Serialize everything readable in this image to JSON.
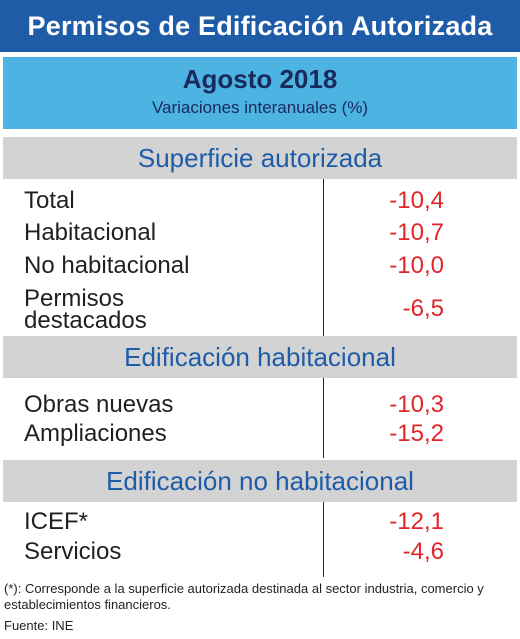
{
  "header": {
    "title": "Permisos de Edificación Autorizada"
  },
  "period": {
    "month": "Agosto 2018",
    "subtitle": "Variaciones interanuales (%)"
  },
  "sections": [
    {
      "title": "Superficie autorizada",
      "rows": [
        {
          "label": "Total",
          "value": "-10,4"
        },
        {
          "label": "Habitacional",
          "value": "-10,7"
        },
        {
          "label": "No habitacional",
          "value": "-10,0"
        },
        {
          "label_line1": "Permisos",
          "label_line2": "destacados",
          "value": "-6,5"
        }
      ]
    },
    {
      "title": "Edificación habitacional",
      "rows": [
        {
          "label": "Obras nuevas",
          "value": "-10,3"
        },
        {
          "label": "Ampliaciones",
          "value": "-15,2"
        }
      ]
    },
    {
      "title": "Edificación no habitacional",
      "rows": [
        {
          "label": "ICEF*",
          "value": "-12,1"
        },
        {
          "label": "Servicios",
          "value": "-4,6"
        }
      ]
    }
  ],
  "footnote": "(*): Corresponde a la superficie autorizada destinada al sector industria, comercio y establecimientos financieros.",
  "source": "Fuente: INE"
}
